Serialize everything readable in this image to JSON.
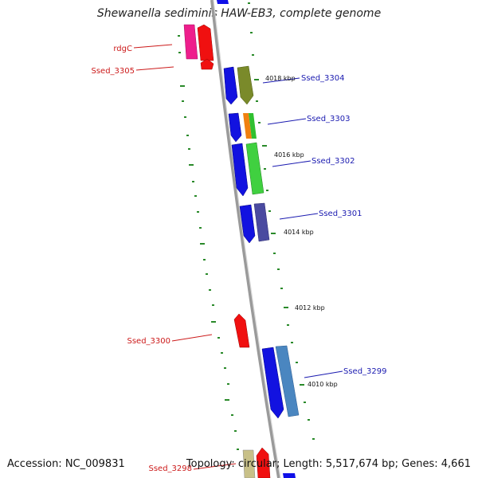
{
  "title": "Shewanella sediminis HAW-EB3, complete genome",
  "footer": {
    "accession": "Accession: NC_009831",
    "summary": "Topology: circular; Length: 5,517,674 bp; Genes: 4,661"
  },
  "colors": {
    "forward_gene": "#1010e8",
    "reverse_gene": "#f01010",
    "forward_label": "#1a1ab0",
    "reverse_label": "#cc1a1a",
    "backbone": "#8a8a8a",
    "tick": "#2a8a2a"
  },
  "kbp_markers": [
    "4018 kbp",
    "4016 kbp",
    "4014 kbp",
    "4012 kbp",
    "4010 kbp"
  ],
  "gene_labels": {
    "rdgC": "rdgC",
    "Ssed_3305": "Ssed_3305",
    "Ssed_3304": "Ssed_3304",
    "Ssed_3303": "Ssed_3303",
    "Ssed_3302": "Ssed_3302",
    "Ssed_3301": "Ssed_3301",
    "Ssed_3300": "Ssed_3300",
    "Ssed_3299": "Ssed_3299",
    "Ssed_3298": "Ssed_3298"
  }
}
